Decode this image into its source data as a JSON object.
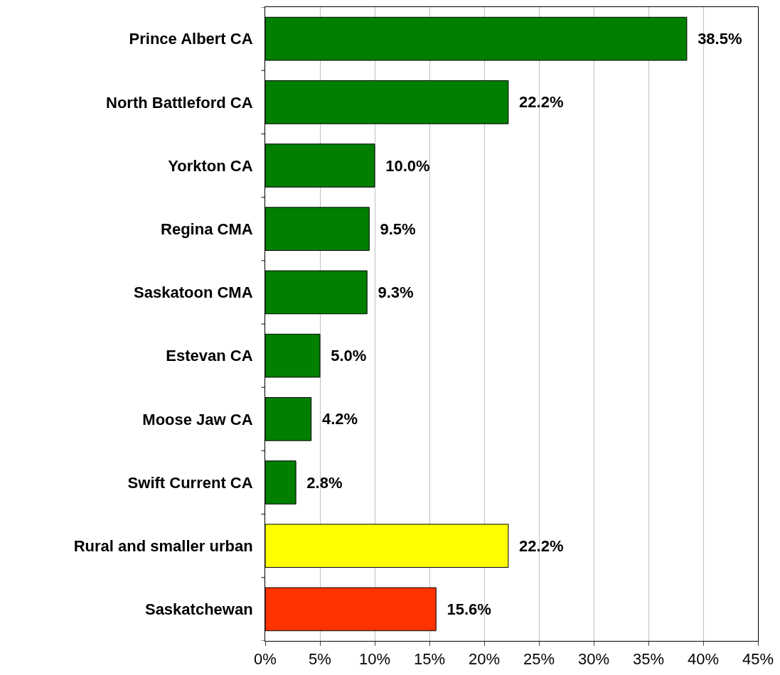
{
  "chart_data": {
    "type": "bar",
    "orientation": "horizontal",
    "categories": [
      "Prince Albert CA",
      "North Battleford CA",
      "Yorkton CA",
      "Regina CMA",
      "Saskatoon CMA",
      "Estevan CA",
      "Moose Jaw CA",
      "Swift Current CA",
      "Rural and smaller urban",
      "Saskatchewan"
    ],
    "values": [
      38.5,
      22.2,
      10.0,
      9.5,
      9.3,
      5.0,
      4.2,
      2.8,
      22.2,
      15.6
    ],
    "value_labels": [
      "38.5%",
      "22.2%",
      "10.0%",
      "9.5%",
      "9.3%",
      "5.0%",
      "4.2%",
      "2.8%",
      "22.2%",
      "15.6%"
    ],
    "colors": [
      "#007f00",
      "#007f00",
      "#007f00",
      "#007f00",
      "#007f00",
      "#007f00",
      "#007f00",
      "#007f00",
      "#ffff00",
      "#ff3300"
    ],
    "xlim": [
      0,
      45
    ],
    "xticks": [
      {
        "value": 0,
        "label": "0%"
      },
      {
        "value": 5,
        "label": "5%"
      },
      {
        "value": 10,
        "label": "10%"
      },
      {
        "value": 15,
        "label": "15%"
      },
      {
        "value": 20,
        "label": "20%"
      },
      {
        "value": 25,
        "label": "25%"
      },
      {
        "value": 30,
        "label": "30%"
      },
      {
        "value": 35,
        "label": "35%"
      },
      {
        "value": 40,
        "label": "40%"
      },
      {
        "value": 45,
        "label": "45%"
      }
    ],
    "grid": "x"
  }
}
